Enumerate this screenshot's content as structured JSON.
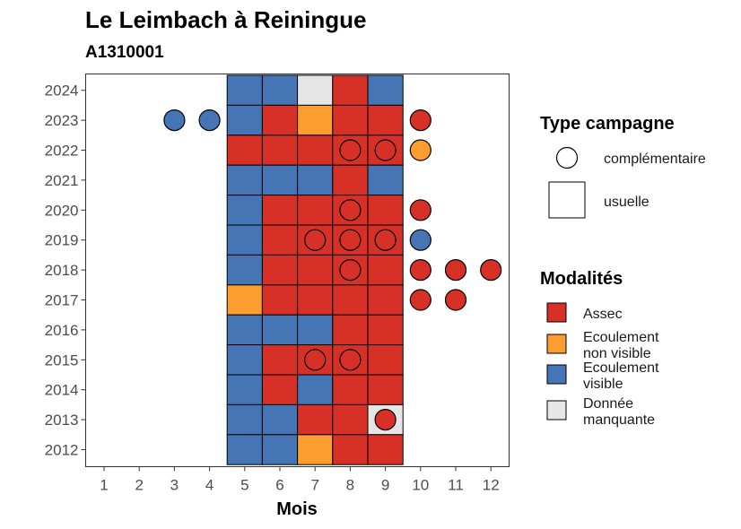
{
  "chart_data": {
    "type": "heatmap",
    "title": "Le Leimbach à Reiningue",
    "subtitle": "A1310001",
    "xlabel": "Mois",
    "ylabel": "",
    "x_ticks": [
      "1",
      "2",
      "3",
      "4",
      "5",
      "6",
      "7",
      "8",
      "9",
      "10",
      "11",
      "12"
    ],
    "y_ticks": [
      "2012",
      "2013",
      "2014",
      "2015",
      "2016",
      "2017",
      "2018",
      "2019",
      "2020",
      "2021",
      "2022",
      "2023",
      "2024"
    ],
    "xlim": [
      0.5,
      12.5
    ],
    "ylim": [
      2011.4,
      2024.6
    ],
    "grid": false,
    "legend_placement": "right",
    "colors": {
      "Assec": "#d73027",
      "Ecoulement non visible": "#fd9d2f",
      "Ecoulement visible": "#4575b4",
      "Donnée manquante": "#e6e6e6"
    },
    "usuelle": [
      {
        "year": 2024,
        "months": {
          "5": "Ecoulement visible",
          "6": "Ecoulement visible",
          "7": "Donnée manquante",
          "8": "Assec",
          "9": "Ecoulement visible"
        }
      },
      {
        "year": 2023,
        "months": {
          "5": "Ecoulement visible",
          "6": "Assec",
          "7": "Ecoulement non visible",
          "8": "Assec",
          "9": "Assec"
        }
      },
      {
        "year": 2022,
        "months": {
          "5": "Assec",
          "6": "Assec",
          "7": "Assec",
          "8": "Assec",
          "9": "Assec"
        }
      },
      {
        "year": 2021,
        "months": {
          "5": "Ecoulement visible",
          "6": "Ecoulement visible",
          "7": "Ecoulement visible",
          "8": "Assec",
          "9": "Ecoulement visible"
        }
      },
      {
        "year": 2020,
        "months": {
          "5": "Ecoulement visible",
          "6": "Assec",
          "7": "Assec",
          "8": "Assec",
          "9": "Assec"
        }
      },
      {
        "year": 2019,
        "months": {
          "5": "Ecoulement visible",
          "6": "Assec",
          "7": "Assec",
          "8": "Assec",
          "9": "Assec"
        }
      },
      {
        "year": 2018,
        "months": {
          "5": "Ecoulement visible",
          "6": "Assec",
          "7": "Assec",
          "8": "Assec",
          "9": "Assec"
        }
      },
      {
        "year": 2017,
        "months": {
          "5": "Ecoulement non visible",
          "6": "Assec",
          "7": "Assec",
          "8": "Assec",
          "9": "Assec"
        }
      },
      {
        "year": 2016,
        "months": {
          "5": "Ecoulement visible",
          "6": "Ecoulement visible",
          "7": "Ecoulement visible",
          "8": "Assec",
          "9": "Assec"
        }
      },
      {
        "year": 2015,
        "months": {
          "5": "Ecoulement visible",
          "6": "Assec",
          "7": "Assec",
          "8": "Assec",
          "9": "Assec"
        }
      },
      {
        "year": 2014,
        "months": {
          "5": "Ecoulement visible",
          "6": "Assec",
          "7": "Ecoulement visible",
          "8": "Assec",
          "9": "Assec"
        }
      },
      {
        "year": 2013,
        "months": {
          "5": "Ecoulement visible",
          "6": "Ecoulement visible",
          "7": "Assec",
          "8": "Assec",
          "9": "Donnée manquante"
        }
      },
      {
        "year": 2012,
        "months": {
          "5": "Ecoulement visible",
          "6": "Ecoulement visible",
          "7": "Ecoulement non visible",
          "8": "Assec",
          "9": "Assec"
        }
      }
    ],
    "complementaire": [
      {
        "year": 2023,
        "month": 3,
        "modalite": "Ecoulement visible"
      },
      {
        "year": 2023,
        "month": 4,
        "modalite": "Ecoulement visible"
      },
      {
        "year": 2023,
        "month": 10,
        "modalite": "Assec"
      },
      {
        "year": 2022,
        "month": 8,
        "modalite": "Assec"
      },
      {
        "year": 2022,
        "month": 9,
        "modalite": "Assec"
      },
      {
        "year": 2022,
        "month": 10,
        "modalite": "Ecoulement non visible"
      },
      {
        "year": 2020,
        "month": 8,
        "modalite": "Assec"
      },
      {
        "year": 2020,
        "month": 10,
        "modalite": "Assec"
      },
      {
        "year": 2019,
        "month": 7,
        "modalite": "Assec"
      },
      {
        "year": 2019,
        "month": 8,
        "modalite": "Assec"
      },
      {
        "year": 2019,
        "month": 9,
        "modalite": "Assec"
      },
      {
        "year": 2019,
        "month": 10,
        "modalite": "Ecoulement visible"
      },
      {
        "year": 2018,
        "month": 8,
        "modalite": "Assec"
      },
      {
        "year": 2018,
        "month": 10,
        "modalite": "Assec"
      },
      {
        "year": 2018,
        "month": 11,
        "modalite": "Assec"
      },
      {
        "year": 2018,
        "month": 12,
        "modalite": "Assec"
      },
      {
        "year": 2017,
        "month": 10,
        "modalite": "Assec"
      },
      {
        "year": 2017,
        "month": 11,
        "modalite": "Assec"
      },
      {
        "year": 2015,
        "month": 7,
        "modalite": "Assec"
      },
      {
        "year": 2015,
        "month": 8,
        "modalite": "Assec"
      },
      {
        "year": 2013,
        "month": 9,
        "modalite": "Assec"
      }
    ],
    "legend_type": {
      "title": "Type campagne",
      "items": [
        "complémentaire",
        "usuelle"
      ]
    },
    "legend_modalites": {
      "title": "Modalités",
      "items": [
        {
          "key": "Assec",
          "lines": [
            "Assec"
          ]
        },
        {
          "key": "Ecoulement non visible",
          "lines": [
            "Ecoulement",
            "non visible"
          ]
        },
        {
          "key": "Ecoulement visible",
          "lines": [
            "Ecoulement",
            "visible"
          ]
        },
        {
          "key": "Donnée manquante",
          "lines": [
            "Donnée",
            "manquante"
          ]
        }
      ]
    }
  }
}
